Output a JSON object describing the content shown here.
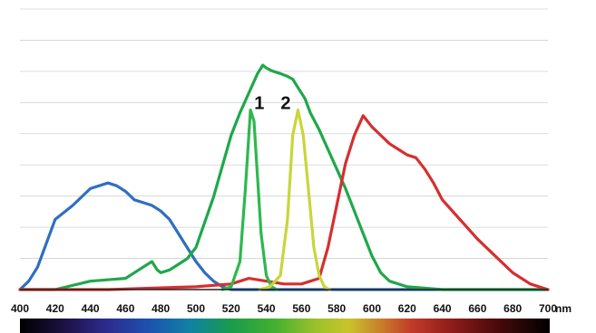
{
  "chart_data": {
    "type": "line",
    "title": "",
    "xlabel": "",
    "ylabel": "",
    "x_unit": "nm",
    "xlim": [
      400,
      700
    ],
    "ylim": [
      0,
      100
    ],
    "grid": true,
    "x_ticks": [
      "400",
      "420",
      "440",
      "460",
      "480",
      "500",
      "520",
      "540",
      "560",
      "580",
      "600",
      "620",
      "640",
      "660",
      "680",
      "700"
    ],
    "annotations": [
      {
        "text": "1",
        "x": 536,
        "y": 63
      },
      {
        "text": "2",
        "x": 551,
        "y": 63
      }
    ],
    "series": [
      {
        "color": "#2f6fc0",
        "points": [
          [
            400,
            0
          ],
          [
            405,
            3
          ],
          [
            410,
            8
          ],
          [
            420,
            25
          ],
          [
            430,
            30
          ],
          [
            440,
            36
          ],
          [
            450,
            38
          ],
          [
            455,
            37
          ],
          [
            460,
            35
          ],
          [
            465,
            32
          ],
          [
            470,
            31
          ],
          [
            475,
            30
          ],
          [
            480,
            28
          ],
          [
            485,
            25
          ],
          [
            490,
            20
          ],
          [
            495,
            15
          ],
          [
            500,
            10
          ],
          [
            505,
            6
          ],
          [
            510,
            3
          ],
          [
            515,
            1
          ],
          [
            520,
            0
          ],
          [
            540,
            0
          ],
          [
            700,
            0
          ]
        ]
      },
      {
        "color": "#1fa84a",
        "points": [
          [
            400,
            0
          ],
          [
            420,
            0
          ],
          [
            440,
            3
          ],
          [
            460,
            4
          ],
          [
            470,
            8
          ],
          [
            475,
            10
          ],
          [
            478,
            7
          ],
          [
            480,
            6
          ],
          [
            485,
            7
          ],
          [
            490,
            9
          ],
          [
            495,
            11
          ],
          [
            500,
            15
          ],
          [
            505,
            24
          ],
          [
            510,
            33
          ],
          [
            515,
            44
          ],
          [
            520,
            55
          ],
          [
            525,
            63
          ],
          [
            530,
            70
          ],
          [
            535,
            77
          ],
          [
            538,
            80
          ],
          [
            540,
            79
          ],
          [
            543,
            78
          ],
          [
            548,
            77
          ],
          [
            552,
            76
          ],
          [
            555,
            75
          ],
          [
            558,
            72
          ],
          [
            562,
            68
          ],
          [
            565,
            63
          ],
          [
            570,
            57
          ],
          [
            575,
            50
          ],
          [
            580,
            43
          ],
          [
            585,
            36
          ],
          [
            590,
            28
          ],
          [
            595,
            20
          ],
          [
            600,
            12
          ],
          [
            605,
            6
          ],
          [
            610,
            3
          ],
          [
            620,
            1
          ],
          [
            640,
            0
          ],
          [
            700,
            0
          ]
        ]
      },
      {
        "color": "#d62f2f",
        "points": [
          [
            400,
            0
          ],
          [
            450,
            0
          ],
          [
            500,
            1
          ],
          [
            520,
            2
          ],
          [
            530,
            4
          ],
          [
            540,
            3
          ],
          [
            550,
            2
          ],
          [
            560,
            2
          ],
          [
            570,
            4
          ],
          [
            575,
            15
          ],
          [
            580,
            30
          ],
          [
            585,
            45
          ],
          [
            590,
            55
          ],
          [
            595,
            62
          ],
          [
            600,
            58
          ],
          [
            605,
            55
          ],
          [
            610,
            52
          ],
          [
            615,
            50
          ],
          [
            620,
            48
          ],
          [
            625,
            47
          ],
          [
            630,
            43
          ],
          [
            635,
            38
          ],
          [
            640,
            32
          ],
          [
            650,
            25
          ],
          [
            660,
            18
          ],
          [
            670,
            12
          ],
          [
            680,
            6
          ],
          [
            690,
            2
          ],
          [
            700,
            0
          ]
        ]
      },
      {
        "color": "#2db84f",
        "points": [
          [
            515,
            0
          ],
          [
            520,
            1
          ],
          [
            525,
            10
          ],
          [
            528,
            35
          ],
          [
            531,
            64
          ],
          [
            533,
            60
          ],
          [
            535,
            40
          ],
          [
            537,
            20
          ],
          [
            540,
            5
          ],
          [
            543,
            1
          ],
          [
            546,
            0
          ]
        ]
      },
      {
        "color": "#c8d63a",
        "points": [
          [
            536,
            0
          ],
          [
            542,
            1
          ],
          [
            548,
            5
          ],
          [
            552,
            25
          ],
          [
            555,
            55
          ],
          [
            558,
            64
          ],
          [
            561,
            55
          ],
          [
            564,
            35
          ],
          [
            567,
            15
          ],
          [
            570,
            5
          ],
          [
            573,
            1
          ],
          [
            576,
            0
          ]
        ]
      }
    ]
  }
}
